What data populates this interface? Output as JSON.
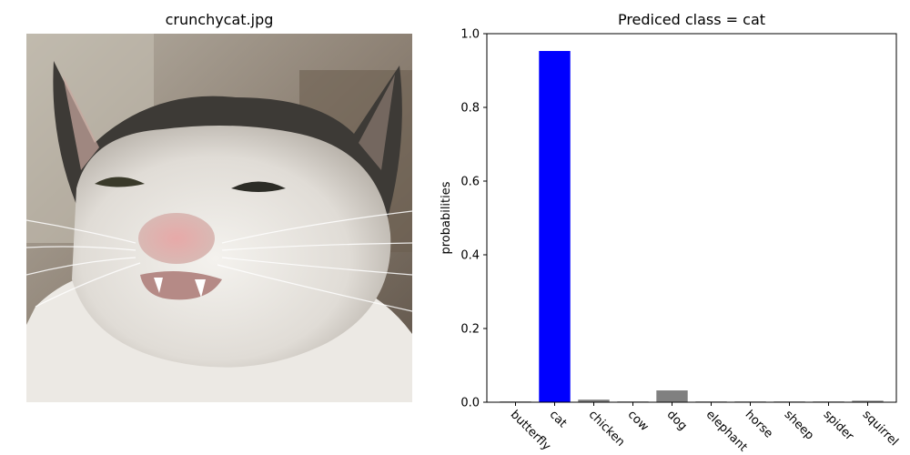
{
  "image_panel": {
    "title": "crunchycat.jpg",
    "description_icon": "cat-photo"
  },
  "chart_data": {
    "type": "bar",
    "title": "Prediced class = cat",
    "xlabel": "",
    "ylabel": "probabilities",
    "categories": [
      "butterfly",
      "cat",
      "chicken",
      "cow",
      "dog",
      "elephant",
      "horse",
      "sheep",
      "spider",
      "squirrel"
    ],
    "values": [
      0.001,
      0.953,
      0.007,
      0.0005,
      0.032,
      0.0003,
      0.0003,
      0.0003,
      0.001,
      0.004
    ],
    "highlight_index": 1,
    "highlight_color": "#0000ff",
    "bar_color": "#808080",
    "ylim": [
      0,
      1.0
    ],
    "yticks": [
      "0.0",
      "0.2",
      "0.4",
      "0.6",
      "0.8",
      "1.0"
    ],
    "grid": false,
    "legend": "none"
  }
}
